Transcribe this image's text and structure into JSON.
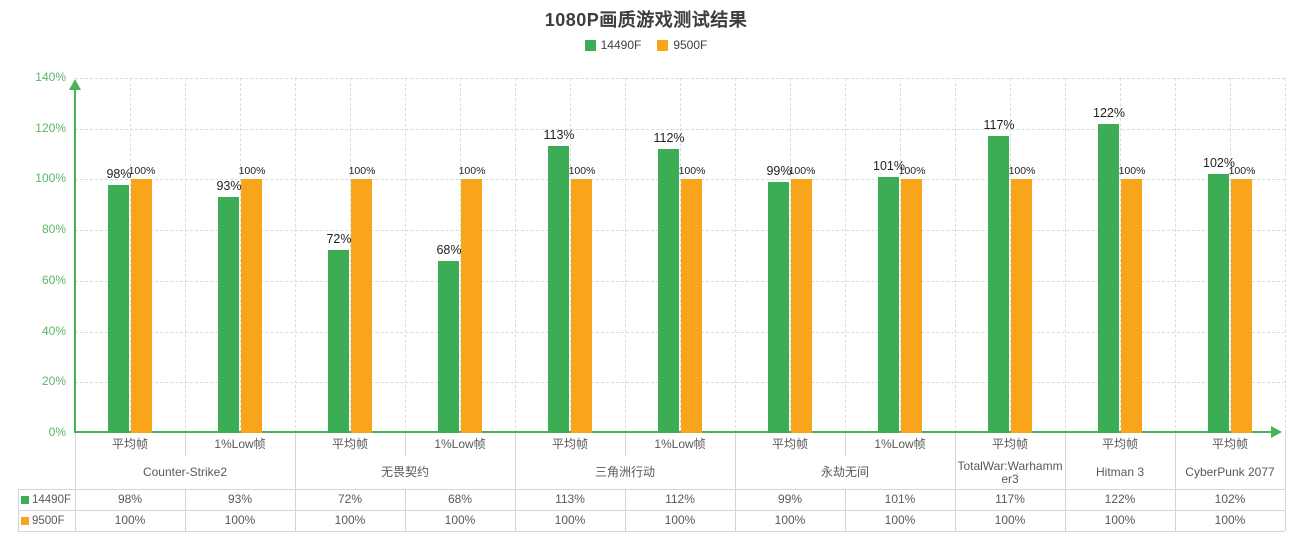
{
  "title": "1080P画质游戏测试结果",
  "chart_data": {
    "type": "bar",
    "title": "1080P画质游戏测试结果",
    "xlabel": "",
    "ylabel": "",
    "ylim": [
      0,
      140
    ],
    "grid": true,
    "legend_position": "top",
    "y_ticks": [
      0,
      20,
      40,
      60,
      80,
      100,
      120,
      140
    ],
    "y_tick_labels": [
      "0%",
      "20%",
      "40%",
      "60%",
      "80%",
      "100%",
      "120%",
      "140%"
    ],
    "value_suffix": "%",
    "categories": [
      "平均帧",
      "1%Low帧",
      "平均帧",
      "1%Low帧",
      "平均帧",
      "1%Low帧",
      "平均帧",
      "1%Low帧",
      "平均帧",
      "平均帧",
      "平均帧"
    ],
    "groups": [
      {
        "label": "Counter-Strike2",
        "cols": 2
      },
      {
        "label": "无畏契约",
        "cols": 2
      },
      {
        "label": "三角洲行动",
        "cols": 2
      },
      {
        "label": "永劫无间",
        "cols": 2
      },
      {
        "label": "TotalWar:Warhammer3",
        "cols": 1
      },
      {
        "label": "Hitman 3",
        "cols": 1
      },
      {
        "label": "CyberPunk 2077",
        "cols": 1
      }
    ],
    "series": [
      {
        "name": "14490F",
        "color": "#3cad55",
        "values": [
          98,
          93,
          72,
          68,
          113,
          112,
          99,
          101,
          117,
          122,
          102
        ]
      },
      {
        "name": "9500F",
        "color": "#f9a51c",
        "values": [
          100,
          100,
          100,
          100,
          100,
          100,
          100,
          100,
          100,
          100,
          100
        ]
      }
    ]
  },
  "colors": {
    "title_text": "#3d3d3d",
    "legend_text": "#404040",
    "axis_green": "#4bb05a",
    "tick_label_green": "#5cb46c",
    "grid_horizontal": "#cfe0d6",
    "grid_vertical": "#d3dfe4",
    "table_border": "#ccd7e2",
    "table_text": "#595959",
    "data_label_text": "#1f1f1f"
  }
}
